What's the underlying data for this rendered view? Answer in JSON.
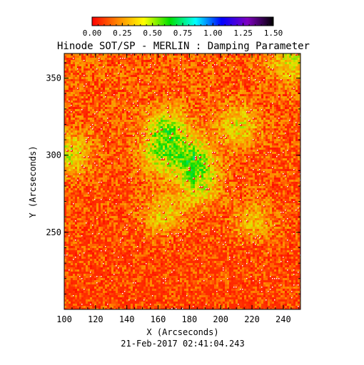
{
  "chart_data": {
    "type": "heatmap",
    "title": "Hinode SOT/SP - MERLIN : Damping Parameter",
    "xlabel": "X (Arcseconds)",
    "ylabel": "Y (Arcseconds)",
    "xlim": [
      100,
      251
    ],
    "ylim": [
      200,
      366
    ],
    "x_ticks": [
      100,
      120,
      140,
      160,
      180,
      200,
      220,
      240
    ],
    "y_ticks": [
      250,
      300,
      350
    ],
    "colorbar": {
      "range": [
        0.0,
        1.5
      ],
      "ticks": [
        "0.00",
        "0.25",
        "0.50",
        "0.75",
        "1.00",
        "1.25",
        "1.50"
      ],
      "colormap": [
        "#ff0000",
        "#ff8800",
        "#ffff00",
        "#00e000",
        "#00ffff",
        "#0000ff",
        "#7f00c0",
        "#000000"
      ]
    },
    "background_value": 0.1,
    "enhanced_regions": [
      {
        "x": 165,
        "y": 318,
        "value": 0.55
      },
      {
        "x": 182,
        "y": 298,
        "value": 0.6
      },
      {
        "x": 160,
        "y": 300,
        "value": 0.45
      },
      {
        "x": 186,
        "y": 280,
        "value": 0.45
      },
      {
        "x": 210,
        "y": 320,
        "value": 0.4
      },
      {
        "x": 103,
        "y": 302,
        "value": 0.45
      },
      {
        "x": 163,
        "y": 262,
        "value": 0.4
      },
      {
        "x": 220,
        "y": 258,
        "value": 0.35
      },
      {
        "x": 245,
        "y": 362,
        "value": 0.4
      }
    ],
    "timestamp": "21-Feb-2017 02:41:04.243"
  }
}
